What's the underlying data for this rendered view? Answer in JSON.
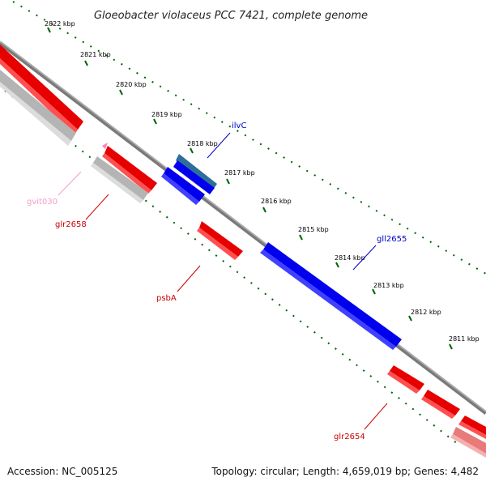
{
  "title": "Gloeobacter violaceus PCC 7421, complete genome",
  "footer": {
    "accession": "Accession: NC_005125",
    "summary": "Topology: circular; Length: 4,659,019 bp; Genes: 4,482"
  },
  "ticks": [
    "2822 kbp",
    "2821 kbp",
    "2820 kbp",
    "2819 kbp",
    "2818 kbp",
    "2817 kbp",
    "2816 kbp",
    "2815 kbp",
    "2814 kbp",
    "2813 kbp",
    "2812 kbp",
    "2811 kbp"
  ],
  "gene_labels": [
    {
      "name": "ilvC",
      "color": "#0000cc"
    },
    {
      "name": "gll2655",
      "color": "#0000cc"
    },
    {
      "name": "gvit030",
      "color": "#f0a0c8"
    },
    {
      "name": "glr2658",
      "color": "#cc0000"
    },
    {
      "name": "psbA",
      "color": "#cc0000"
    },
    {
      "name": "glr2654",
      "color": "#cc0000"
    }
  ],
  "colors": {
    "forward_gene": "#ff0000",
    "reverse_gene": "#0000ff",
    "rna_gene": "#ff80c0",
    "other_feature": "#c8c8c8",
    "backbone": "#7a7a7a",
    "tick_marks": "#006400"
  }
}
